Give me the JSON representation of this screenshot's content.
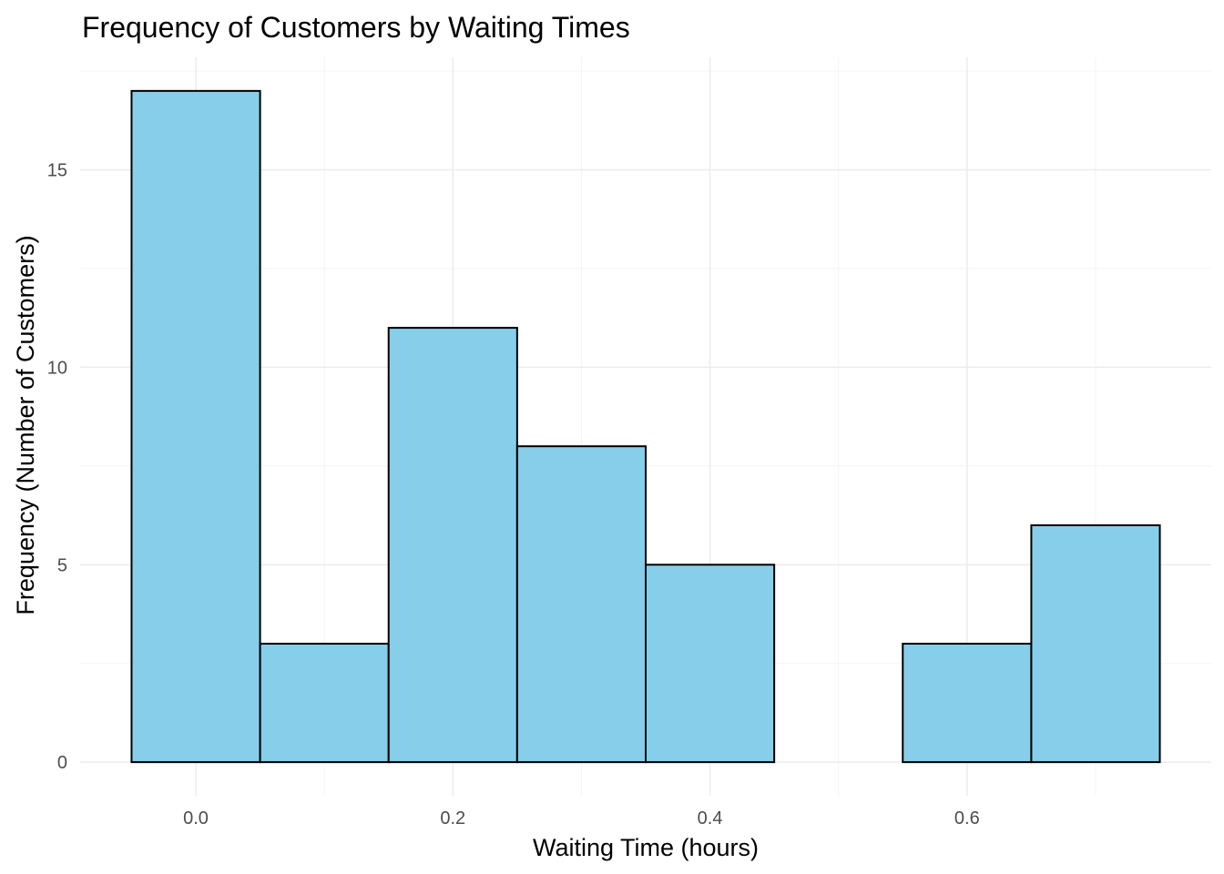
{
  "chart_data": {
    "type": "bar",
    "title": "Frequency of Customers by Waiting Times",
    "xlabel": "Waiting Time (hours)",
    "ylabel": "Frequency (Number of Customers)",
    "bin_width": 0.1,
    "bins": [
      {
        "center": 0.0,
        "count": 17
      },
      {
        "center": 0.1,
        "count": 3
      },
      {
        "center": 0.2,
        "count": 11
      },
      {
        "center": 0.3,
        "count": 8
      },
      {
        "center": 0.4,
        "count": 5
      },
      {
        "center": 0.5,
        "count": 0
      },
      {
        "center": 0.6,
        "count": 3
      },
      {
        "center": 0.7,
        "count": 6
      }
    ],
    "x_ticks": [
      "0.0",
      "0.2",
      "0.4",
      "0.6"
    ],
    "x_tick_values": [
      0.0,
      0.2,
      0.4,
      0.6
    ],
    "y_ticks": [
      "0",
      "5",
      "10",
      "15"
    ],
    "y_tick_values": [
      0,
      5,
      10,
      15
    ],
    "xlim": [
      -0.09,
      0.79
    ],
    "ylim": [
      -0.85,
      17.85
    ],
    "grid": true,
    "legend": "none",
    "colors": {
      "bar_fill": "#87CEEB",
      "bar_stroke": "#000000",
      "background": "#ffffff"
    }
  }
}
